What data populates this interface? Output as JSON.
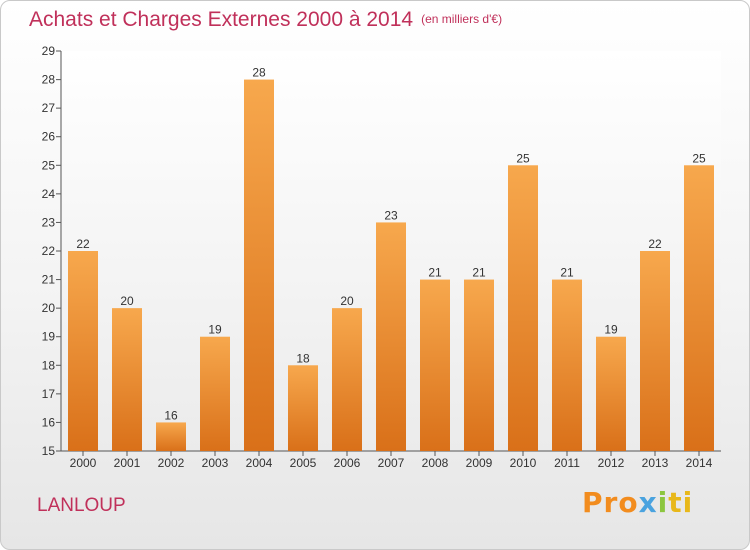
{
  "title": "Achats et Charges Externes 2000 à 2014",
  "unit": "(en milliers d'€)",
  "commune": "LANLOUP",
  "logo": [
    "Pro",
    "x",
    "i",
    "ti"
  ],
  "colors": {
    "bar_top": "#f7a84d",
    "bar_bottom": "#d97019",
    "title": "#c0305a"
  },
  "chart_data": {
    "type": "bar",
    "title": "Achats et Charges Externes 2000 à 2014",
    "xlabel": "",
    "ylabel": "",
    "categories": [
      "2000",
      "2001",
      "2002",
      "2003",
      "2004",
      "2005",
      "2006",
      "2007",
      "2008",
      "2009",
      "2010",
      "2011",
      "2012",
      "2013",
      "2014"
    ],
    "values": [
      22,
      20,
      16,
      19,
      28,
      18,
      20,
      23,
      21,
      21,
      25,
      21,
      19,
      22,
      25
    ],
    "ylim": [
      15,
      29
    ],
    "yticks": [
      15,
      16,
      17,
      18,
      19,
      20,
      21,
      22,
      23,
      24,
      25,
      26,
      27,
      28,
      29
    ],
    "grid": false,
    "legend": "none"
  }
}
